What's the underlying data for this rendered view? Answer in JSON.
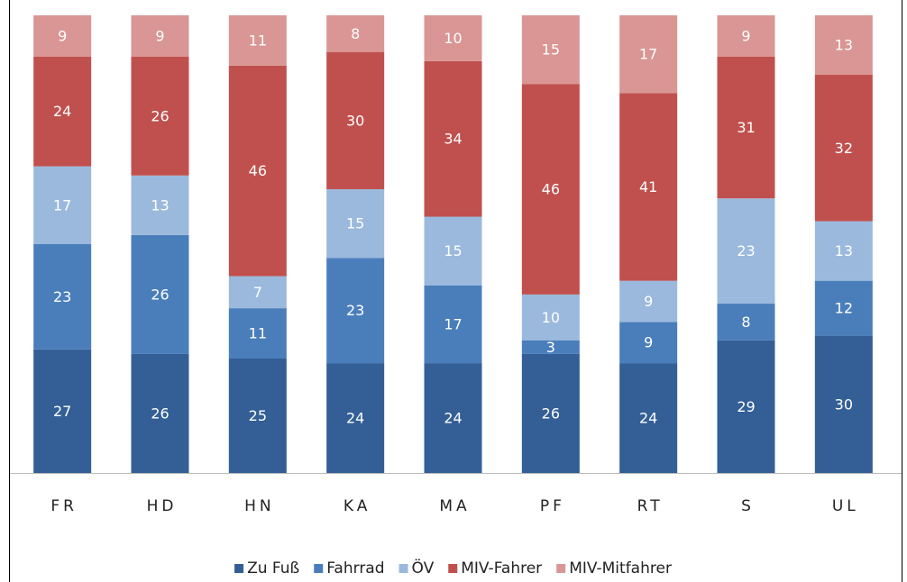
{
  "chart_data": {
    "type": "stacked_bar",
    "categories": [
      "FR",
      "HD",
      "HN",
      "KA",
      "MA",
      "PF",
      "RT",
      "S",
      "UL"
    ],
    "series": [
      {
        "name": "Zu Fuß",
        "color": "#335f96",
        "values": [
          27,
          26,
          25,
          24,
          24,
          26,
          24,
          29,
          30
        ]
      },
      {
        "name": "Fahrrad",
        "color": "#4a7ebb",
        "values": [
          23,
          26,
          11,
          23,
          17,
          3,
          9,
          8,
          12
        ]
      },
      {
        "name": "ÖV",
        "color": "#9bb9dd",
        "values": [
          17,
          13,
          7,
          15,
          15,
          10,
          9,
          23,
          13
        ]
      },
      {
        "name": "MIV-Fahrer",
        "color": "#c0504d",
        "values": [
          24,
          26,
          46,
          30,
          34,
          46,
          41,
          31,
          32
        ]
      },
      {
        "name": "MIV-Mitfahrer",
        "color": "#d99694",
        "values": [
          9,
          9,
          11,
          8,
          10,
          15,
          17,
          9,
          13
        ]
      }
    ]
  }
}
